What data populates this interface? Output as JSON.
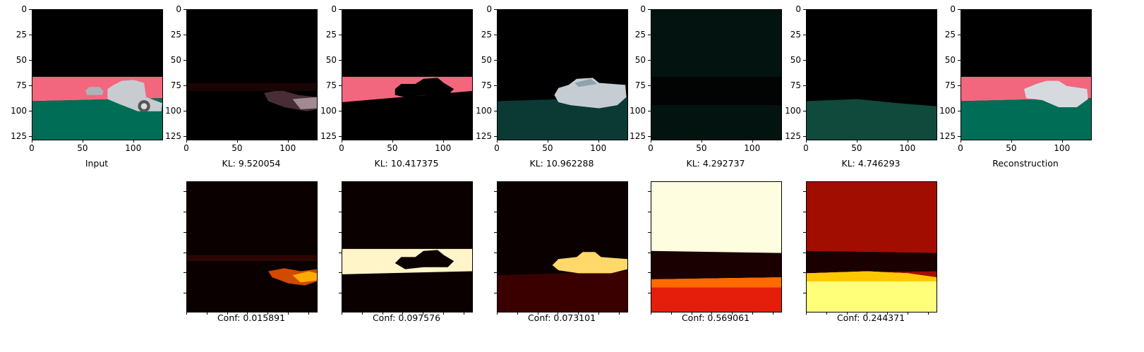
{
  "figure": {
    "top_row": [
      {
        "caption": "Input",
        "image": "input-image"
      },
      {
        "caption": "KL: 9.520054",
        "image": "component-1-image"
      },
      {
        "caption": "KL: 10.417375",
        "image": "component-2-image"
      },
      {
        "caption": "KL: 10.962288",
        "image": "component-3-image"
      },
      {
        "caption": "KL: 4.292737",
        "image": "component-4-image"
      },
      {
        "caption": "KL: 4.746293",
        "image": "component-5-image"
      },
      {
        "caption": "Reconstruction",
        "image": "reconstruction-image"
      }
    ],
    "bottom_row": [
      {
        "caption": "Conf: 0.015891",
        "image": "confidence-map-1"
      },
      {
        "caption": "Conf: 0.097576",
        "image": "confidence-map-2"
      },
      {
        "caption": "Conf: 0.073101",
        "image": "confidence-map-3"
      },
      {
        "caption": "Conf: 0.569061",
        "image": "confidence-map-4"
      },
      {
        "caption": "Conf: 0.244371",
        "image": "confidence-map-5"
      }
    ],
    "x_ticks": [
      "0",
      "50",
      "100"
    ],
    "y_ticks": [
      "0",
      "25",
      "50",
      "75",
      "100",
      "125"
    ],
    "colors": {
      "road_pink": "#f2677e",
      "ground_green": "#006d57",
      "car_gray": "#c8ccd0"
    }
  }
}
